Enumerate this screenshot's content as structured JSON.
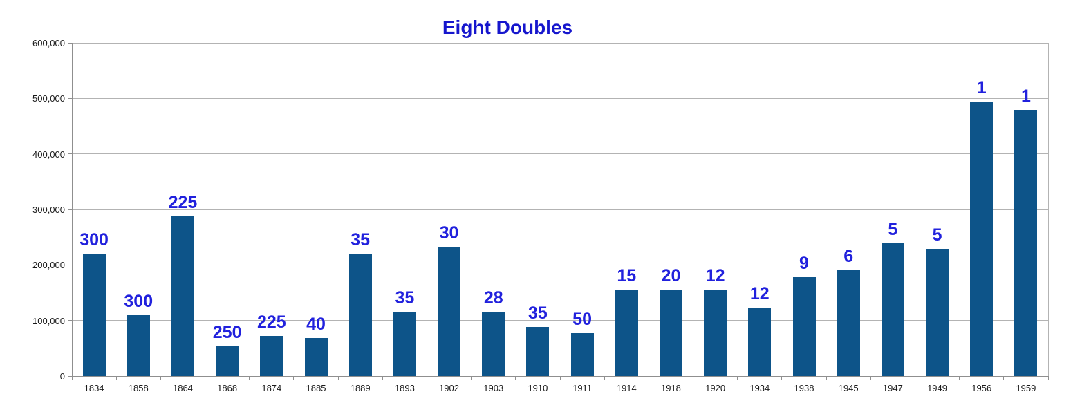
{
  "chart_data": {
    "type": "bar",
    "title": "Eight Doubles",
    "categories": [
      "1834",
      "1858",
      "1864",
      "1868",
      "1874",
      "1885",
      "1889",
      "1893",
      "1902",
      "1903",
      "1910",
      "1911",
      "1914",
      "1918",
      "1920",
      "1934",
      "1938",
      "1945",
      "1947",
      "1949",
      "1956",
      "1959"
    ],
    "values": [
      220000,
      110000,
      287000,
      53000,
      72000,
      68000,
      220000,
      116000,
      233000,
      116000,
      89000,
      77000,
      156000,
      156000,
      156000,
      123000,
      178000,
      191000,
      239000,
      229000,
      494000,
      479000
    ],
    "bar_labels": [
      "300",
      "300",
      "225",
      "250",
      "225",
      "40",
      "35",
      "35",
      "30",
      "28",
      "35",
      "50",
      "15",
      "20",
      "12",
      "12",
      "9",
      "6",
      "5",
      "5",
      "1",
      "1"
    ],
    "xlabel": "",
    "ylabel": "",
    "ylim": [
      0,
      600000
    ],
    "ytick_step": 100000,
    "ytick_labels": [
      "0",
      "100,000",
      "200,000",
      "300,000",
      "400,000",
      "500,000",
      "600,000"
    ],
    "grid": "horizontal",
    "legend": "none",
    "colors": {
      "bar": "#0d5489",
      "bar_label": "#2121dd",
      "title": "#1616cd",
      "gridline": "#b3b3b3",
      "axis": "#8f8f8f",
      "tick_text": "#1a1a1a",
      "background": "#ffffff"
    }
  }
}
